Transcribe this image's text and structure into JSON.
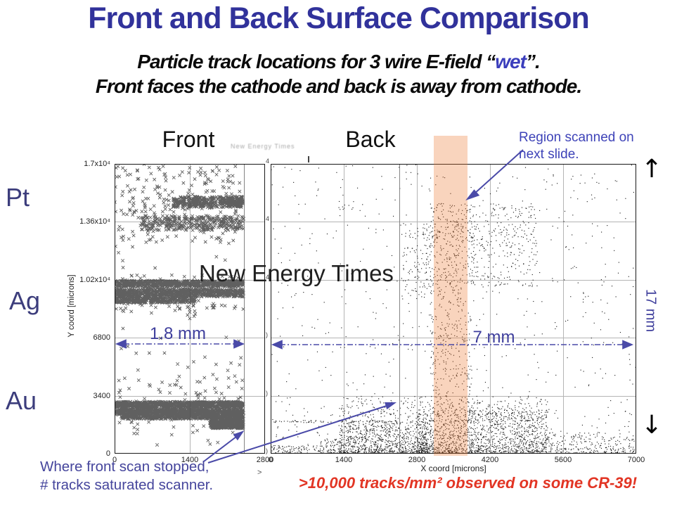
{
  "slide": {
    "title": "Front and Back Surface Comparison",
    "subtitle_prefix": "Particle track locations for 3 wire E-field “",
    "subtitle_wet": "wet",
    "subtitle_suffix": "”.",
    "subtitle_line2": "Front faces the cathode and back is away from cathode."
  },
  "row_labels": [
    "Pt",
    "Ag",
    "Au"
  ],
  "watermark": {
    "large": "New Energy Times",
    "small": "New Energy Times"
  },
  "annotations": {
    "region_scanned_line1": "Region scanned on",
    "region_scanned_line2": "next slide.",
    "front_scan_line1": "Where front scan stopped,",
    "front_scan_line2": "# tracks saturated scanner.",
    "dim_front": "1.8 mm",
    "dim_back": "7 mm",
    "dim_vertical": "17 mm",
    "arrow_up": "↑",
    "arrow_down": "↓",
    "stray_glyph": ">",
    "footer_red": ">10,000 tracks/mm² observed on some CR-39!"
  },
  "colors": {
    "title_blue": "#31329b",
    "annotation_blue": "#45459c",
    "warning_red": "#e23524",
    "band_orange": "rgba(235,120,50,0.32)",
    "front_marker": "#4a4a4a",
    "back_marker": "#141414",
    "grid_gray": "#b4b4b4"
  },
  "chart_data": [
    {
      "type": "scatter",
      "surface": "Front",
      "marker": "x",
      "marker_color": "#4a4a4a",
      "xlabel": "",
      "ylabel": "Y coord [microns]",
      "xlim": [
        0,
        2800
      ],
      "ylim": [
        0,
        17000
      ],
      "xticks": [
        {
          "v": 0,
          "label": "0"
        },
        {
          "v": 1400,
          "label": "1400"
        },
        {
          "v": 2800,
          "label": "2800"
        }
      ],
      "yticks": [
        {
          "v": 0,
          "label": "0"
        },
        {
          "v": 3400,
          "label": "3400"
        },
        {
          "v": 6800,
          "label": "6800"
        },
        {
          "v": 10200,
          "label": "1.02x10⁴"
        },
        {
          "v": 13600,
          "label": "1.36x10⁴"
        },
        {
          "v": 17000,
          "label": "1.7x10⁴"
        }
      ],
      "xgrid": [
        1400
      ],
      "ygrid": [
        3400,
        6800,
        10200,
        13600
      ],
      "scan_stop_x": 2408,
      "clusters": [
        {
          "x": [
            0,
            2400
          ],
          "y": [
            2700,
            3050
          ],
          "n": 900
        },
        {
          "x": [
            0,
            2400
          ],
          "y": [
            2250,
            2620
          ],
          "n": 1000
        },
        {
          "x": [
            120,
            2400
          ],
          "y": [
            2030,
            2250
          ],
          "n": 450
        },
        {
          "x": [
            1780,
            2400
          ],
          "y": [
            1480,
            2030
          ],
          "n": 480
        },
        {
          "x": [
            0,
            2400
          ],
          "y": [
            1150,
            4700
          ],
          "n": 80
        },
        {
          "x": [
            0,
            2400
          ],
          "y": [
            9800,
            10150
          ],
          "n": 700
        },
        {
          "x": [
            0,
            2400
          ],
          "y": [
            9200,
            9660
          ],
          "n": 800
        },
        {
          "x": [
            0,
            1500
          ],
          "y": [
            8850,
            9160
          ],
          "n": 330
        },
        {
          "x": [
            0,
            2400
          ],
          "y": [
            8300,
            10500
          ],
          "n": 110
        },
        {
          "x": [
            1080,
            2400
          ],
          "y": [
            14450,
            15080
          ],
          "n": 420
        },
        {
          "x": [
            480,
            2400
          ],
          "y": [
            13100,
            13950
          ],
          "n": 320
        },
        {
          "x": [
            0,
            2400
          ],
          "y": [
            12400,
            16900
          ],
          "n": 200
        },
        {
          "x": [
            0,
            2400
          ],
          "y": [
            0,
            17000
          ],
          "n": 90
        }
      ]
    },
    {
      "type": "scatter",
      "surface": "Back",
      "marker": "dot",
      "marker_color": "#141414",
      "xlabel": "X coord [microns]",
      "ylabel": "",
      "xlim": [
        0,
        7000
      ],
      "ylim": [
        0,
        17000
      ],
      "xticks": [
        {
          "v": 0,
          "label": "0"
        },
        {
          "v": 1400,
          "label": "1400"
        },
        {
          "v": 2800,
          "label": "2800"
        },
        {
          "v": 4200,
          "label": "4200"
        },
        {
          "v": 5600,
          "label": "5600"
        },
        {
          "v": 7000,
          "label": "7000"
        }
      ],
      "yticks": [],
      "ytick_fragments": [
        {
          "v": 17000,
          "label": "4"
        },
        {
          "v": 13600,
          "label": "4"
        },
        {
          "v": 10200,
          "label": "4"
        },
        {
          "v": 6800,
          "label": ")"
        },
        {
          "v": 3400,
          "label": ")"
        },
        {
          "v": 0,
          "label": ")"
        }
      ],
      "xgrid": [
        1400,
        2800,
        4200,
        5600
      ],
      "ygrid": [
        3400,
        6800,
        10200,
        13600
      ],
      "scan_stop_x": 2463,
      "highlight_band": {
        "x0": 3120,
        "x1": 3770
      },
      "clusters": [
        {
          "x": [
            0,
            7000
          ],
          "y": [
            2800,
            17000
          ],
          "n": 520
        },
        {
          "x": [
            0,
            7000
          ],
          "y": [
            0,
            2800
          ],
          "n": 220
        },
        {
          "x": [
            1300,
            3000
          ],
          "y": [
            0,
            1900
          ],
          "n": 1000,
          "bias": "bottom"
        },
        {
          "x": [
            2800,
            5300
          ],
          "y": [
            0,
            2600
          ],
          "n": 1600,
          "bias": "bottom"
        },
        {
          "x": [
            900,
            1400
          ],
          "y": [
            0,
            900
          ],
          "n": 120,
          "bias": "bottom"
        },
        {
          "x": [
            0,
            900
          ],
          "y": [
            0,
            500
          ],
          "n": 90
        },
        {
          "x": [
            5300,
            7000
          ],
          "y": [
            0,
            1300
          ],
          "n": 300,
          "bias": "bottom"
        },
        {
          "x": [
            1300,
            5300
          ],
          "y": [
            1900,
            3400
          ],
          "n": 300
        },
        {
          "x": [
            3050,
            3850
          ],
          "y": [
            2600,
            9800
          ],
          "n": 280
        },
        {
          "x": [
            3050,
            3900
          ],
          "y": [
            9800,
            14700
          ],
          "n": 330
        },
        {
          "x": [
            3850,
            5100
          ],
          "y": [
            9800,
            14700
          ],
          "n": 260
        },
        {
          "x": [
            2500,
            3050
          ],
          "y": [
            9000,
            13600
          ],
          "n": 120
        },
        {
          "x": [
            0,
            2400
          ],
          "y": [
            1840,
            1980
          ],
          "n": 70
        }
      ]
    }
  ]
}
